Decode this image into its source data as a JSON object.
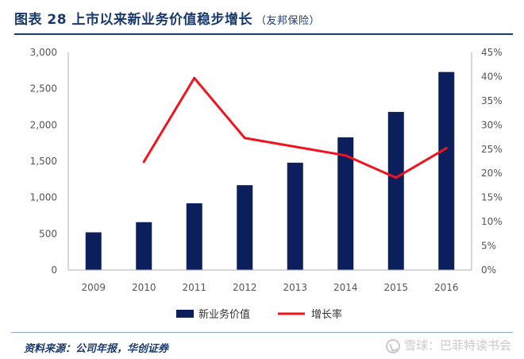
{
  "header": {
    "title": "图表 28  上市以来新业务价值稳步增长",
    "source_tag": "（友邦保险）"
  },
  "footer": {
    "source_note": "资料来源：公司年报，华创证券",
    "watermark": "雪球：巴菲特读书会"
  },
  "colors": {
    "bar": "#0b1f5c",
    "line": "#f0141e",
    "title": "#1a3a6e",
    "axis": "#b0b0b0",
    "text": "#555555"
  },
  "chart_data": {
    "type": "bar",
    "title": "上市以来新业务价值稳步增长",
    "categories": [
      "2009",
      "2010",
      "2011",
      "2012",
      "2013",
      "2014",
      "2015",
      "2016"
    ],
    "series": [
      {
        "name": "新业务价值",
        "type": "bar",
        "axis": "left",
        "values": [
          520,
          660,
          920,
          1170,
          1480,
          1830,
          2180,
          2730
        ]
      },
      {
        "name": "增长率",
        "type": "line",
        "axis": "right",
        "values": [
          null,
          22.4,
          39.7,
          27.3,
          25.5,
          23.7,
          19.1,
          25.2
        ]
      }
    ],
    "left_axis": {
      "min": 0,
      "max": 3000,
      "step": 500,
      "tick_labels": [
        "0",
        "500",
        "1,000",
        "1,500",
        "2,000",
        "2,500",
        "3,000"
      ]
    },
    "right_axis": {
      "min": 0,
      "max": 45,
      "step": 5,
      "tick_labels": [
        "0%",
        "5%",
        "10%",
        "15%",
        "20%",
        "25%",
        "30%",
        "35%",
        "40%",
        "45%"
      ]
    },
    "xlabel": "",
    "ylabel": "",
    "legend": {
      "position": "bottom",
      "items": [
        "新业务价值",
        "增长率"
      ]
    },
    "grid": false
  }
}
